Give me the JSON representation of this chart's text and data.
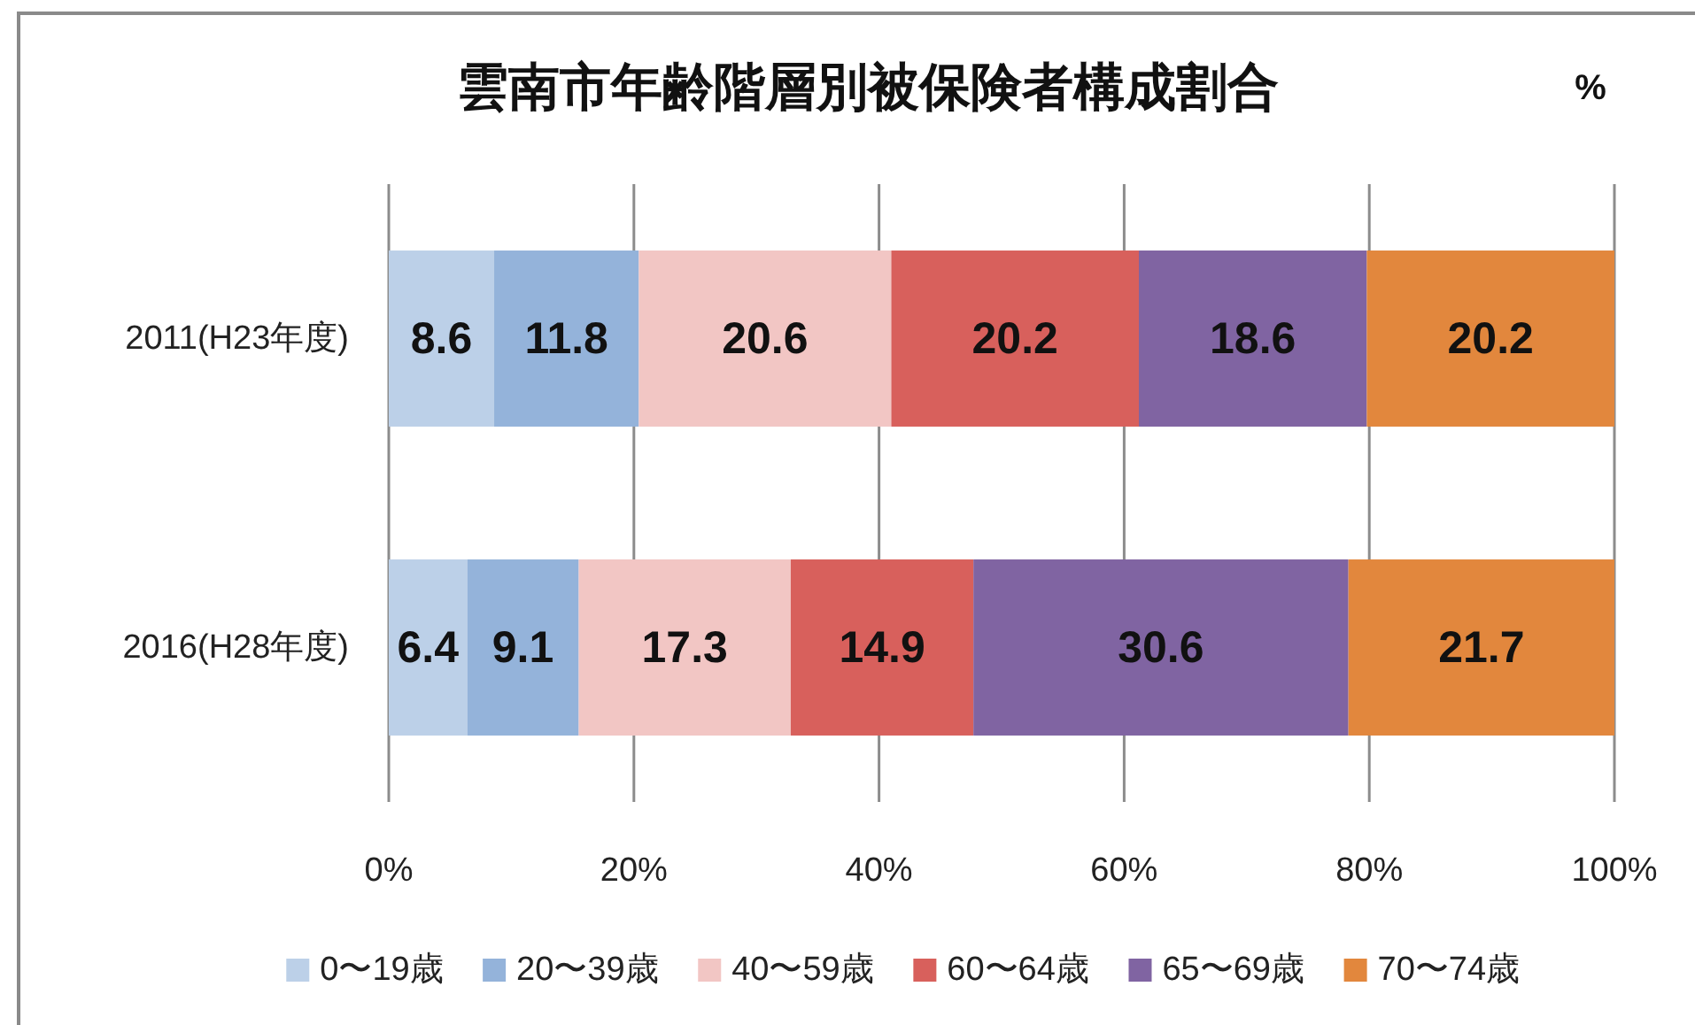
{
  "chart_data": {
    "type": "bar",
    "orientation": "horizontal",
    "stacked": true,
    "title": "雲南市年齢階層別被保険者構成割合",
    "annotations": [
      "%"
    ],
    "categories": [
      "2011(H23年度)",
      "2016(H28年度)"
    ],
    "series": [
      {
        "name": "0〜19歳",
        "color": "#bcd0e8",
        "values": [
          8.6,
          6.4
        ]
      },
      {
        "name": "20〜39歳",
        "color": "#94b3da",
        "values": [
          11.8,
          9.1
        ]
      },
      {
        "name": "40〜59歳",
        "color": "#f2c6c4",
        "values": [
          20.6,
          17.3
        ]
      },
      {
        "name": "60〜64歳",
        "color": "#d8605c",
        "values": [
          20.2,
          14.9
        ]
      },
      {
        "name": "65〜69歳",
        "color": "#8064a2",
        "values": [
          18.6,
          30.6
        ]
      },
      {
        "name": "70〜74歳",
        "color": "#e2873d",
        "values": [
          20.2,
          21.7
        ]
      }
    ],
    "xlim": [
      0,
      100
    ],
    "xticks": [
      {
        "value": 0,
        "label": "0%"
      },
      {
        "value": 20,
        "label": "20%"
      },
      {
        "value": 40,
        "label": "40%"
      },
      {
        "value": 60,
        "label": "60%"
      },
      {
        "value": 80,
        "label": "80%"
      },
      {
        "value": 100,
        "label": "100%"
      }
    ],
    "grid": "x",
    "legend": "bottom",
    "data_labels": true
  }
}
